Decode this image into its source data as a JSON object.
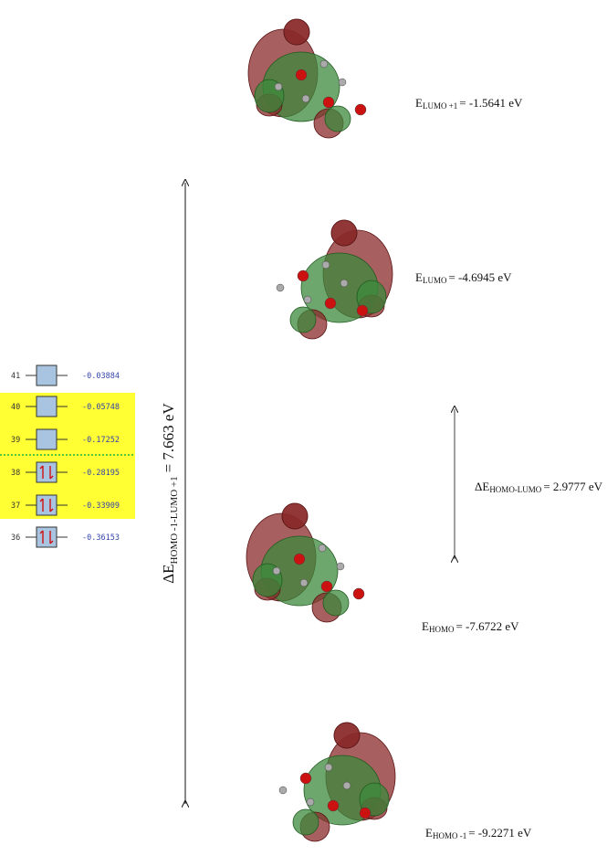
{
  "levels": [
    {
      "number": "41",
      "energy": "-0.03884",
      "occupied": false,
      "highlight": false
    },
    {
      "number": "40",
      "energy": "-0.05748",
      "occupied": false,
      "highlight": true
    },
    {
      "number": "39",
      "energy": "-0.17252",
      "occupied": false,
      "highlight": true
    },
    {
      "number": "38",
      "energy": "-0.28195",
      "occupied": true,
      "highlight": true
    },
    {
      "number": "37",
      "energy": "-0.33909",
      "occupied": true,
      "highlight": true
    },
    {
      "number": "36",
      "energy": "-0.36153",
      "occupied": true,
      "highlight": false
    }
  ],
  "gap_label": {
    "symbol": "ΔE",
    "subscript": "HOMO -1-LUMO +1",
    "value": "= 7.663 eV"
  },
  "small_gap_label": {
    "symbol": "ΔE",
    "subscript": "HOMO-LUMO",
    "value": "= 2.9777 eV"
  },
  "orbitals": [
    {
      "symbol": "E",
      "subscript": "LUMO +1",
      "value": "= -1.5641 eV"
    },
    {
      "symbol": "E",
      "subscript": "LUMO",
      "value": "= -4.6945 eV"
    },
    {
      "symbol": "E",
      "subscript": "HOMO",
      "value": "= -7.6722 eV"
    },
    {
      "symbol": "E",
      "subscript": "HOMO -1",
      "value": "= -9.2271 eV"
    }
  ]
}
